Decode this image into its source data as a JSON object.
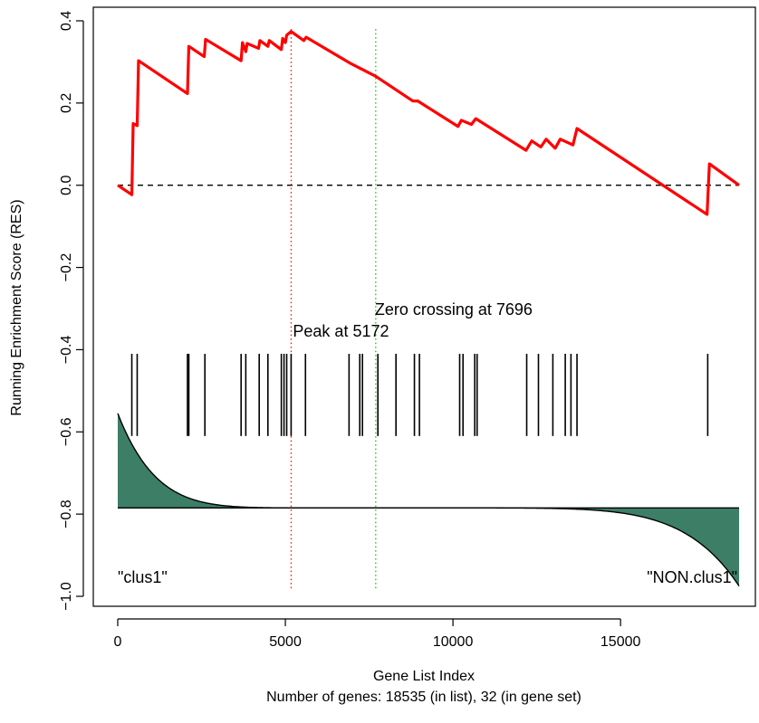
{
  "chart_data": {
    "type": "line",
    "title": "",
    "xlabel": "Gene List Index",
    "subtitle": "Number of genes: 18535 (in list), 32 (in gene set)",
    "ylabel": "Running Enrichment Score (RES)",
    "xlim": [
      0,
      18535
    ],
    "ylim": [
      -1.0,
      0.4
    ],
    "x_ticks": [
      0,
      5000,
      10000,
      15000
    ],
    "x_tick_labels": [
      "0",
      "5000",
      "10000",
      "15000"
    ],
    "y_ticks": [
      -1.0,
      -0.8,
      -0.6,
      -0.4,
      -0.2,
      0.0,
      0.2,
      0.4
    ],
    "y_tick_labels": [
      "−1.0",
      "−0.8",
      "−0.6",
      "−0.4",
      "−0.2",
      "0.0",
      "0.2",
      "0.4"
    ],
    "grid": false,
    "legend": "none",
    "colors": {
      "res_line": "#ff0000",
      "peak_line": "#ff0000",
      "zero_crossing_line": "#00bb00",
      "ranked_metric_fill": "#3c7e66",
      "hits": "#000000"
    },
    "running_enrichment_score": {
      "x": [
        0,
        420,
        460,
        580,
        620,
        2080,
        2120,
        2580,
        2620,
        3680,
        3720,
        3820,
        3860,
        4200,
        4240,
        4480,
        4520,
        4880,
        4920,
        5000,
        5040,
        5172,
        5550,
        5620,
        6930,
        7696,
        8800,
        8950,
        10150,
        10250,
        10550,
        10680,
        12180,
        12350,
        12620,
        12780,
        13050,
        13200,
        13580,
        13700,
        17580,
        17650,
        18535
      ],
      "y": [
        0.0,
        -0.023,
        0.15,
        0.145,
        0.303,
        0.223,
        0.338,
        0.313,
        0.355,
        0.303,
        0.347,
        0.325,
        0.345,
        0.333,
        0.352,
        0.338,
        0.352,
        0.33,
        0.357,
        0.347,
        0.365,
        0.374,
        0.352,
        0.36,
        0.297,
        0.265,
        0.205,
        0.205,
        0.143,
        0.158,
        0.148,
        0.162,
        0.085,
        0.108,
        0.093,
        0.112,
        0.09,
        0.112,
        0.098,
        0.138,
        -0.071,
        0.052,
        0.0
      ]
    },
    "zero_line": 0.0,
    "gene_set_hits": [
      420,
      580,
      2080,
      2120,
      2600,
      3680,
      3820,
      4220,
      4480,
      4880,
      4960,
      5040,
      5172,
      5600,
      6900,
      7220,
      7300,
      7760,
      8300,
      8850,
      9000,
      10200,
      10300,
      10650,
      10720,
      12200,
      12550,
      12980,
      13350,
      13520,
      13700,
      17600
    ],
    "hits_y_range": [
      -0.61,
      -0.41
    ],
    "ranked_metric": {
      "baseline": -0.785,
      "top": -0.555,
      "bottom": -0.975,
      "zero_cross_index": 7696
    },
    "peak": {
      "x": 5172,
      "label": "Peak at 5172"
    },
    "zero_crossing": {
      "x": 7696,
      "label": "Zero crossing at 7696"
    },
    "phenotype_labels": {
      "left": "\"clus1\"",
      "right": "\"NON.clus1\""
    }
  }
}
